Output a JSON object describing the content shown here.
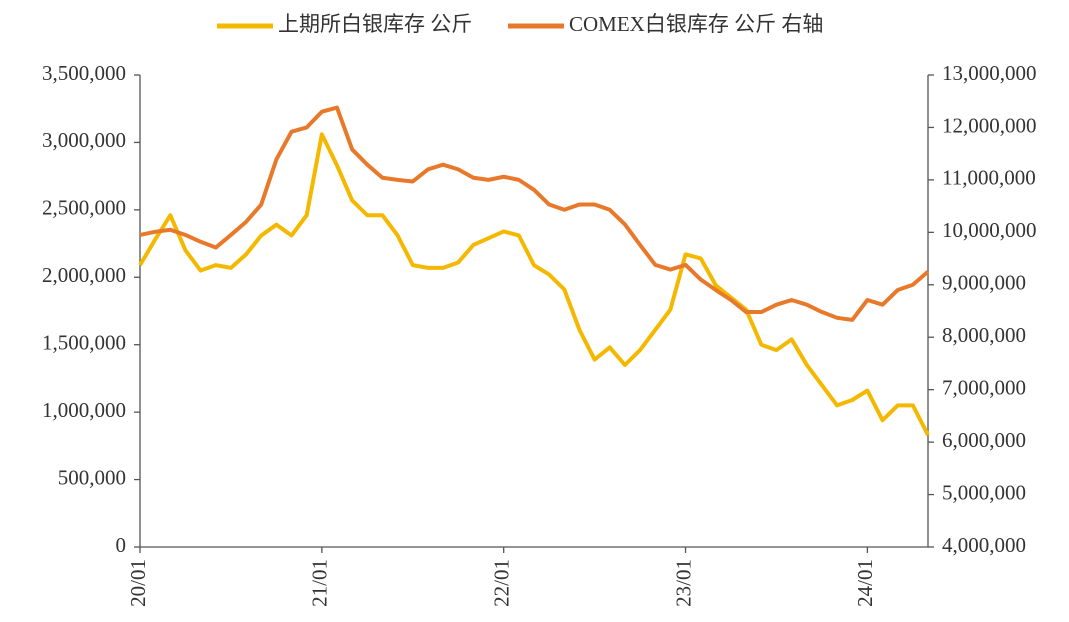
{
  "chart_data": {
    "type": "line",
    "categories": [
      "20/01",
      null,
      null,
      null,
      null,
      null,
      null,
      null,
      null,
      null,
      null,
      null,
      "21/01",
      null,
      null,
      null,
      null,
      null,
      null,
      null,
      null,
      null,
      null,
      null,
      "22/01",
      null,
      null,
      null,
      null,
      null,
      null,
      null,
      null,
      null,
      null,
      null,
      "23/01",
      null,
      null,
      null,
      null,
      null,
      null,
      null,
      null,
      null,
      null,
      null,
      "24/01",
      null,
      null,
      null,
      null
    ],
    "series": [
      {
        "name": "上期所白银库存 公斤",
        "color": "#f5b800",
        "values": [
          2090000,
          2280000,
          2460000,
          2200000,
          2050000,
          2090000,
          2070000,
          2170000,
          2310000,
          2390000,
          2310000,
          2460000,
          3060000,
          2830000,
          2570000,
          2460000,
          2460000,
          2310000,
          2090000,
          2070000,
          2070000,
          2110000,
          2240000,
          2290000,
          2340000,
          2310000,
          2090000,
          2020000,
          1910000,
          1610000,
          1390000,
          1480000,
          1350000,
          1460000,
          1610000,
          1760000,
          2170000,
          2140000,
          1940000,
          1850000,
          1760000,
          1500000,
          1460000,
          1540000,
          1350000,
          1200000,
          1050000,
          1090000,
          1160000,
          940000,
          1050000,
          1050000,
          830000
        ]
      },
      {
        "name": "COMEX白银库存 公斤 右轴",
        "color": "#e8792a",
        "axis": "y2",
        "values": [
          9950000,
          10010000,
          10050000,
          9950000,
          9820000,
          9710000,
          9950000,
          10200000,
          10530000,
          11390000,
          11920000,
          12000000,
          12300000,
          12380000,
          11580000,
          11290000,
          11040000,
          11000000,
          10970000,
          11200000,
          11290000,
          11200000,
          11040000,
          11000000,
          11060000,
          11000000,
          10810000,
          10530000,
          10430000,
          10530000,
          10530000,
          10430000,
          10150000,
          9760000,
          9380000,
          9290000,
          9380000,
          9100000,
          8900000,
          8710000,
          8480000,
          8480000,
          8620000,
          8710000,
          8620000,
          8480000,
          8370000,
          8330000,
          8710000,
          8620000,
          8900000,
          9000000,
          9250000
        ]
      }
    ],
    "ylim": [
      0,
      3500000
    ],
    "yticks": [
      0,
      {
        "value": 500000,
        "label": "500,000"
      },
      {
        "value": 1000000,
        "label": "1,000,000"
      },
      {
        "value": 1500000,
        "label": "1,500,000"
      },
      {
        "value": 2000000,
        "label": "2,000,000"
      },
      {
        "value": 2500000,
        "label": "2,500,000"
      },
      {
        "value": 3000000,
        "label": "3,000,000"
      },
      {
        "value": 3500000,
        "label": "3,500,000"
      }
    ],
    "y2lim": [
      4000000,
      13000000
    ],
    "y2ticks": [
      {
        "value": 4000000,
        "label": "4,000,000"
      },
      {
        "value": 5000000,
        "label": "5,000,000"
      },
      {
        "value": 6000000,
        "label": "6,000,000"
      },
      {
        "value": 7000000,
        "label": "7,000,000"
      },
      {
        "value": 8000000,
        "label": "8,000,000"
      },
      {
        "value": 9000000,
        "label": "9,000,000"
      },
      {
        "value": 10000000,
        "label": "10,000,000"
      },
      {
        "value": 11000000,
        "label": "11,000,000"
      },
      {
        "value": 12000000,
        "label": "12,000,000"
      },
      {
        "value": 13000000,
        "label": "13,000,000"
      }
    ],
    "legend": "top"
  }
}
